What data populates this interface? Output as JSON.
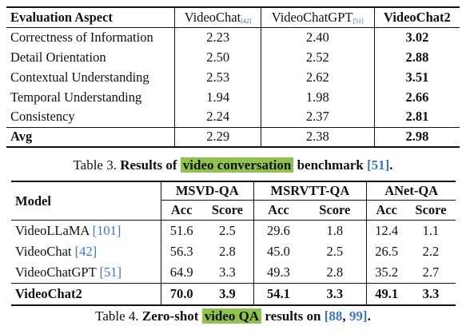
{
  "table3": {
    "headers": {
      "aspect": "Evaluation Aspect",
      "col1": "VideoChat",
      "col1_ref": "[42]",
      "col2": "VideoChatGPT",
      "col2_ref": "[51]",
      "col3": "VideoChat2"
    },
    "rows": [
      {
        "label": "Correctness of Information",
        "v1": "2.23",
        "v2": "2.40",
        "v3": "3.02"
      },
      {
        "label": "Detail Orientation",
        "v1": "2.50",
        "v2": "2.52",
        "v3": "2.88"
      },
      {
        "label": "Contextual Understanding",
        "v1": "2.53",
        "v2": "2.62",
        "v3": "3.51"
      },
      {
        "label": "Temporal Understanding",
        "v1": "1.94",
        "v2": "1.98",
        "v3": "2.66"
      },
      {
        "label": "Consistency",
        "v1": "2.24",
        "v2": "2.37",
        "v3": "2.81"
      }
    ],
    "avg": {
      "label": "Avg",
      "v1": "2.29",
      "v2": "2.38",
      "v3": "2.98"
    },
    "caption": {
      "prefix": "Table 3. ",
      "bold1": "Results of ",
      "highlight": "video conversation",
      "bold2": " benchmark ",
      "ref": "[51]",
      "suffix": "."
    }
  },
  "table4": {
    "model_header": "Model",
    "groups": [
      "MSVD-QA",
      "MSRVTT-QA",
      "ANet-QA"
    ],
    "sub": {
      "acc": "Acc",
      "score": "Score"
    },
    "rows": [
      {
        "model": "VideoLLaMA ",
        "ref": "[101]",
        "vals": [
          "51.6",
          "2.5",
          "29.6",
          "1.8",
          "12.4",
          "1.1"
        ]
      },
      {
        "model": "VideoChat ",
        "ref": "[42]",
        "vals": [
          "56.3",
          "2.8",
          "45.0",
          "2.5",
          "26.5",
          "2.2"
        ]
      },
      {
        "model": "VideoChatGPT ",
        "ref": "[51]",
        "vals": [
          "64.9",
          "3.3",
          "49.3",
          "2.8",
          "35.2",
          "2.7"
        ]
      }
    ],
    "last": {
      "model": "VideoChat2",
      "vals": [
        "70.0",
        "3.9",
        "54.1",
        "3.3",
        "49.1",
        "3.3"
      ]
    },
    "caption": {
      "prefix": "Table 4. ",
      "bold1": "Zero-shot ",
      "highlight": "video QA",
      "bold2": " results on ",
      "ref1": "[88",
      "comma": ", ",
      "ref2": "99]",
      "suffix": "."
    }
  }
}
